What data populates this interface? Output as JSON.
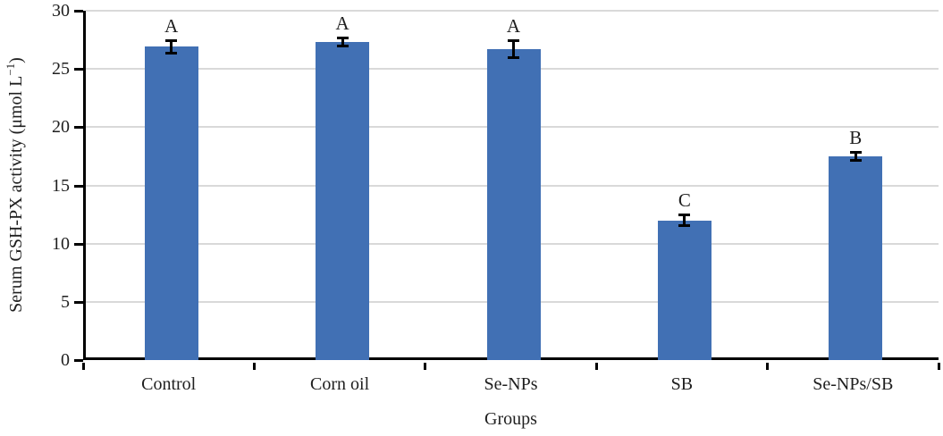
{
  "chart_data": {
    "type": "bar",
    "title": "",
    "xlabel": "Groups",
    "ylabel": "Serum GSH-PX activity (μmol L⁻¹)",
    "ylabel_prefix": "Serum GSH-PX activity (μmol L",
    "ylabel_sup": "−1",
    "ylabel_suffix": ")",
    "categories": [
      "Control",
      "Corn oil",
      "Se-NPs",
      "SB",
      "Se-NPs/SB"
    ],
    "values": [
      26.9,
      27.3,
      26.7,
      12.0,
      17.5
    ],
    "errors": [
      0.6,
      0.4,
      0.8,
      0.5,
      0.4
    ],
    "bar_labels": [
      "A",
      "A",
      "A",
      "C",
      "B"
    ],
    "ylim": [
      0,
      30
    ],
    "ytick_step": 5,
    "yticks": [
      0,
      5,
      10,
      15,
      20,
      25,
      30
    ],
    "grid": "horizontal",
    "legend": "none",
    "bar_color": "#4170B4",
    "gridline_color": "#D9D9D9",
    "axis_color": "#000000",
    "error_bar_color": "#000000"
  }
}
